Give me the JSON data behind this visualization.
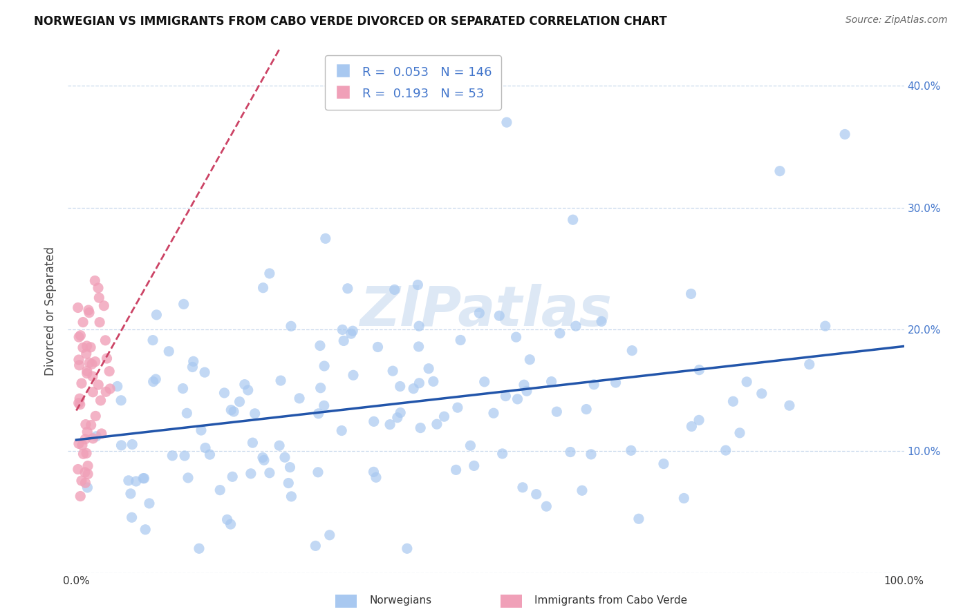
{
  "title": "NORWEGIAN VS IMMIGRANTS FROM CABO VERDE DIVORCED OR SEPARATED CORRELATION CHART",
  "source": "Source: ZipAtlas.com",
  "ylabel": "Divorced or Separated",
  "xlim": [
    0.0,
    1.0
  ],
  "ylim": [
    0.0,
    0.43
  ],
  "yticks": [
    0.0,
    0.1,
    0.2,
    0.3,
    0.4
  ],
  "ytick_labels_right": [
    "",
    "10.0%",
    "20.0%",
    "30.0%",
    "40.0%"
  ],
  "xtick_labels": [
    "0.0%",
    "",
    "",
    "",
    "",
    "",
    "",
    "",
    "",
    "",
    "100.0%"
  ],
  "norwegian_R": 0.053,
  "norwegian_N": 146,
  "caboverde_R": 0.193,
  "caboverde_N": 53,
  "blue_color": "#a8c8f0",
  "pink_color": "#f0a0b8",
  "trend_blue": "#2255aa",
  "trend_pink": "#cc4466",
  "legend_label1": "Norwegians",
  "legend_label2": "Immigrants from Cabo Verde",
  "background_color": "#ffffff",
  "grid_color": "#c8d8ec",
  "axis_color": "#4477cc",
  "watermark_color": "#dde8f5",
  "title_color": "#111111",
  "source_color": "#666666"
}
